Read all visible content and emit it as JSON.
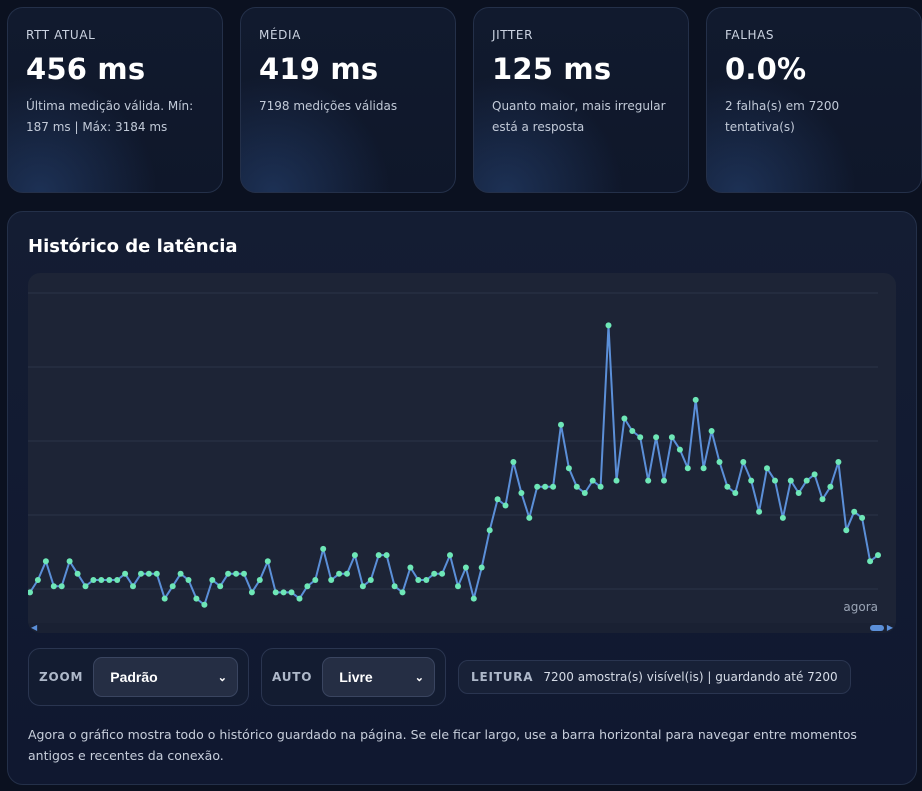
{
  "cards": [
    {
      "label": "RTT ATUAL",
      "value": "456 ms",
      "desc": "Última medição válida. Mín: 187 ms | Máx: 3184 ms"
    },
    {
      "label": "MÉDIA",
      "value": "419 ms",
      "desc": "7198 medições válidas"
    },
    {
      "label": "JITTER",
      "value": "125 ms",
      "desc": "Quanto maior, mais irregular está a resposta"
    },
    {
      "label": "FALHAS",
      "value": "0.0%",
      "desc": "2 falha(s) em 7200 tentativa(s)"
    }
  ],
  "panel": {
    "title": "Histórico de latência",
    "now_label": "agora"
  },
  "controls": {
    "zoom_label": "ZOOM",
    "zoom_value": "Padrão",
    "auto_label": "AUTO",
    "auto_value": "Livre",
    "reading_label": "LEITURA",
    "reading_text": "7200 amostra(s) visível(is) | guardando até 7200"
  },
  "footnote": "Agora o gráfico mostra todo o histórico guardado na página. Se ele ficar largo, use a barra horizontal para navegar entre momentos antigos e recentes da conexão.",
  "colors": {
    "line": "#5b8fd8",
    "point": "#6ee7b7",
    "background": "#0b1120"
  },
  "chart_data": {
    "type": "line",
    "grid": true,
    "ylim": [
      0,
      4.8
    ],
    "series": [
      {
        "values": [
          0.3,
          0.5,
          0.8,
          0.4,
          0.4,
          0.8,
          0.6,
          0.4,
          0.5,
          0.5,
          0.5,
          0.5,
          0.6,
          0.4,
          0.6,
          0.6,
          0.6,
          0.2,
          0.4,
          0.6,
          0.5,
          0.2,
          0.1,
          0.5,
          0.4,
          0.6,
          0.6,
          0.6,
          0.3,
          0.5,
          0.8,
          0.3,
          0.3,
          0.3,
          0.2,
          0.4,
          0.5,
          1.0,
          0.5,
          0.6,
          0.6,
          0.9,
          0.4,
          0.5,
          0.9,
          0.9,
          0.4,
          0.3,
          0.7,
          0.5,
          0.5,
          0.6,
          0.6,
          0.9,
          0.4,
          0.7,
          0.2,
          0.7,
          1.3,
          1.8,
          1.7,
          2.4,
          1.9,
          1.5,
          2.0,
          2.0,
          2.0,
          3.0,
          2.3,
          2.0,
          1.9,
          2.1,
          2.0,
          4.6,
          2.1,
          3.1,
          2.9,
          2.8,
          2.1,
          2.8,
          2.1,
          2.8,
          2.6,
          2.3,
          3.4,
          2.3,
          2.9,
          2.4,
          2.0,
          1.9,
          2.4,
          2.1,
          1.6,
          2.3,
          2.1,
          1.5,
          2.1,
          1.9,
          2.1,
          2.2,
          1.8,
          2.0,
          2.4,
          1.3,
          1.6,
          1.5,
          0.8,
          0.9
        ]
      }
    ]
  }
}
